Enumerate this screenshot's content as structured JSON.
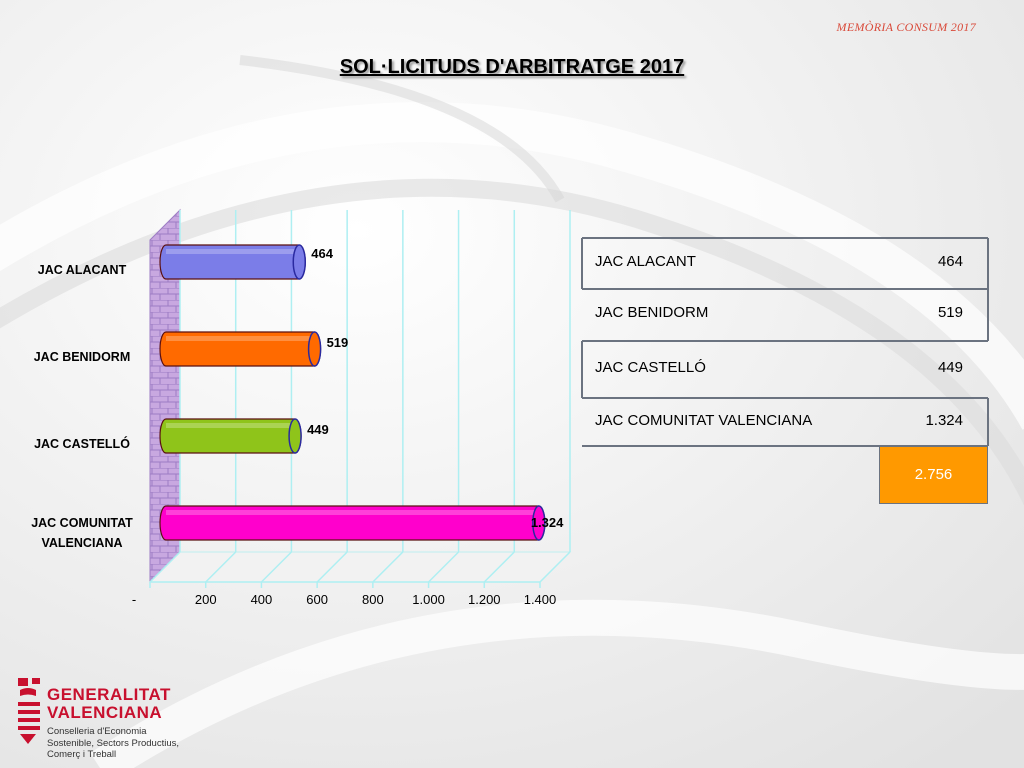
{
  "header_note": "MEMÒRIA CONSUM 2017",
  "title": "SOL·LICITUDS D'ARBITRATGE 2017",
  "chart_data": {
    "type": "bar",
    "orientation": "horizontal",
    "title": "",
    "categories": [
      "JAC ALACANT",
      "JAC BENIDORM",
      "JAC CASTELLÓ",
      "JAC COMUNITAT VALENCIANA"
    ],
    "category_lines": [
      [
        "JAC ALACANT"
      ],
      [
        "JAC BENIDORM"
      ],
      [
        "JAC CASTELLÓ"
      ],
      [
        "JAC COMUNITAT",
        "VALENCIANA"
      ]
    ],
    "values": [
      464,
      519,
      449,
      1324
    ],
    "value_labels": [
      "464",
      "519",
      "449",
      "1.324"
    ],
    "colors": [
      "#7b7de8",
      "#ff6a00",
      "#8fc41a",
      "#ff00cc"
    ],
    "xlim": [
      0,
      1400
    ],
    "x_ticks": [
      0,
      200,
      400,
      600,
      800,
      1000,
      1200,
      1400
    ],
    "x_tick_labels": [
      "-",
      "200",
      "400",
      "600",
      "800",
      "1.000",
      "1.200",
      "1.400"
    ],
    "grid": true
  },
  "table": {
    "rows": [
      {
        "label": "JAC ALACANT",
        "value": "464"
      },
      {
        "label": "JAC BENIDORM",
        "value": "519"
      },
      {
        "label": "JAC CASTELLÓ",
        "value": "449"
      },
      {
        "label": "JAC COMUNITAT VALENCIANA",
        "value": "1.324"
      }
    ],
    "total": "2.756",
    "total_color": "#ff9900"
  },
  "logo": {
    "line1": "GENERALITAT",
    "line2": "VALENCIANA",
    "sub1": "Conselleria d'Economia",
    "sub2": "Sostenible, Sectors Productius,",
    "sub3": "Comerç i Treball",
    "color": "#c8102e"
  }
}
